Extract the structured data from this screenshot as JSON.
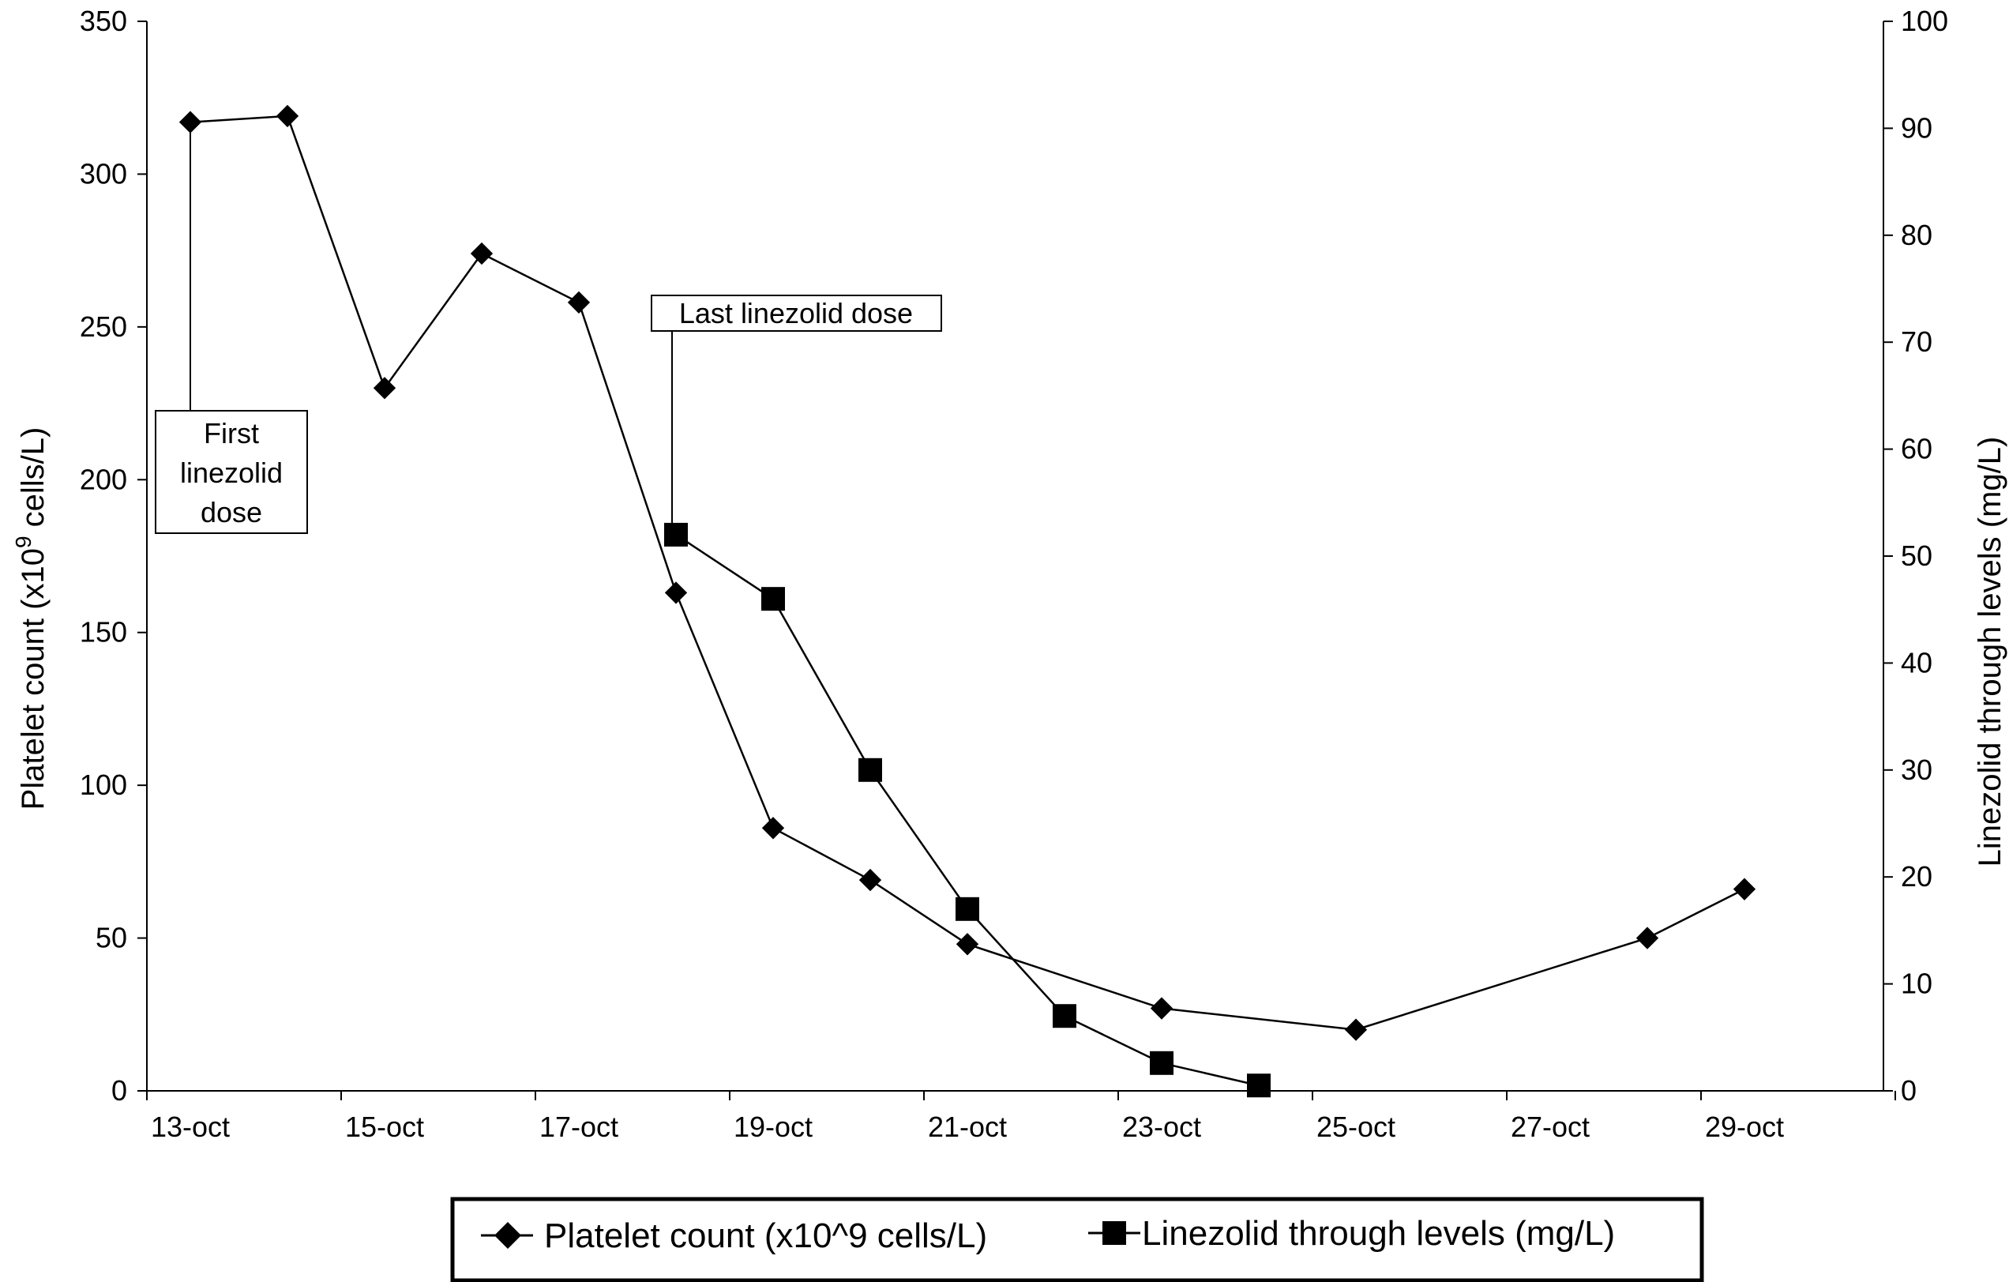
{
  "chart_data": {
    "type": "line",
    "x_tick_labels": [
      "13-oct",
      "15-oct",
      "17-oct",
      "19-oct",
      "21-oct",
      "23-oct",
      "25-oct",
      "27-oct",
      "29-oct"
    ],
    "y_left": {
      "label_prefix": "Platelet count (x10",
      "label_sup": "9",
      "label_suffix": " cells/L)",
      "range": [
        0,
        350
      ],
      "ticks": [
        0,
        50,
        100,
        150,
        200,
        250,
        300,
        350
      ]
    },
    "y_right": {
      "label": "Linezolid through levels (mg/L)",
      "range": [
        0,
        100
      ],
      "ticks": [
        0,
        10,
        20,
        30,
        40,
        50,
        60,
        70,
        80,
        90,
        100
      ]
    },
    "series": [
      {
        "name": "Platelet count (x10^9 cells/L)",
        "axis": "left",
        "marker": "diamond",
        "points": [
          [
            "13-oct",
            317
          ],
          [
            "14-oct",
            319
          ],
          [
            "15-oct",
            230
          ],
          [
            "16-oct",
            274
          ],
          [
            "17-oct",
            258
          ],
          [
            "18-oct",
            163
          ],
          [
            "19-oct",
            86
          ],
          [
            "20-oct",
            69
          ],
          [
            "21-oct",
            48
          ],
          [
            "23-oct",
            27
          ],
          [
            "25-oct",
            20
          ],
          [
            "28-oct",
            50
          ],
          [
            "29-oct",
            66
          ]
        ]
      },
      {
        "name": "Linezolid through levels (mg/L)",
        "axis": "right",
        "marker": "square",
        "points": [
          [
            "18-oct",
            52
          ],
          [
            "19-oct",
            46
          ],
          [
            "20-oct",
            30
          ],
          [
            "21-oct",
            17
          ],
          [
            "22-oct",
            7
          ],
          [
            "23-oct",
            2.6
          ],
          [
            "24-oct",
            0.5
          ]
        ]
      }
    ],
    "annotations": [
      {
        "lines": [
          "First",
          "linezolid",
          "dose"
        ],
        "date": "13-oct"
      },
      {
        "lines": [
          "Last linezolid dose"
        ],
        "date": "18-oct"
      }
    ],
    "legend_position": "bottom",
    "grid": false
  }
}
